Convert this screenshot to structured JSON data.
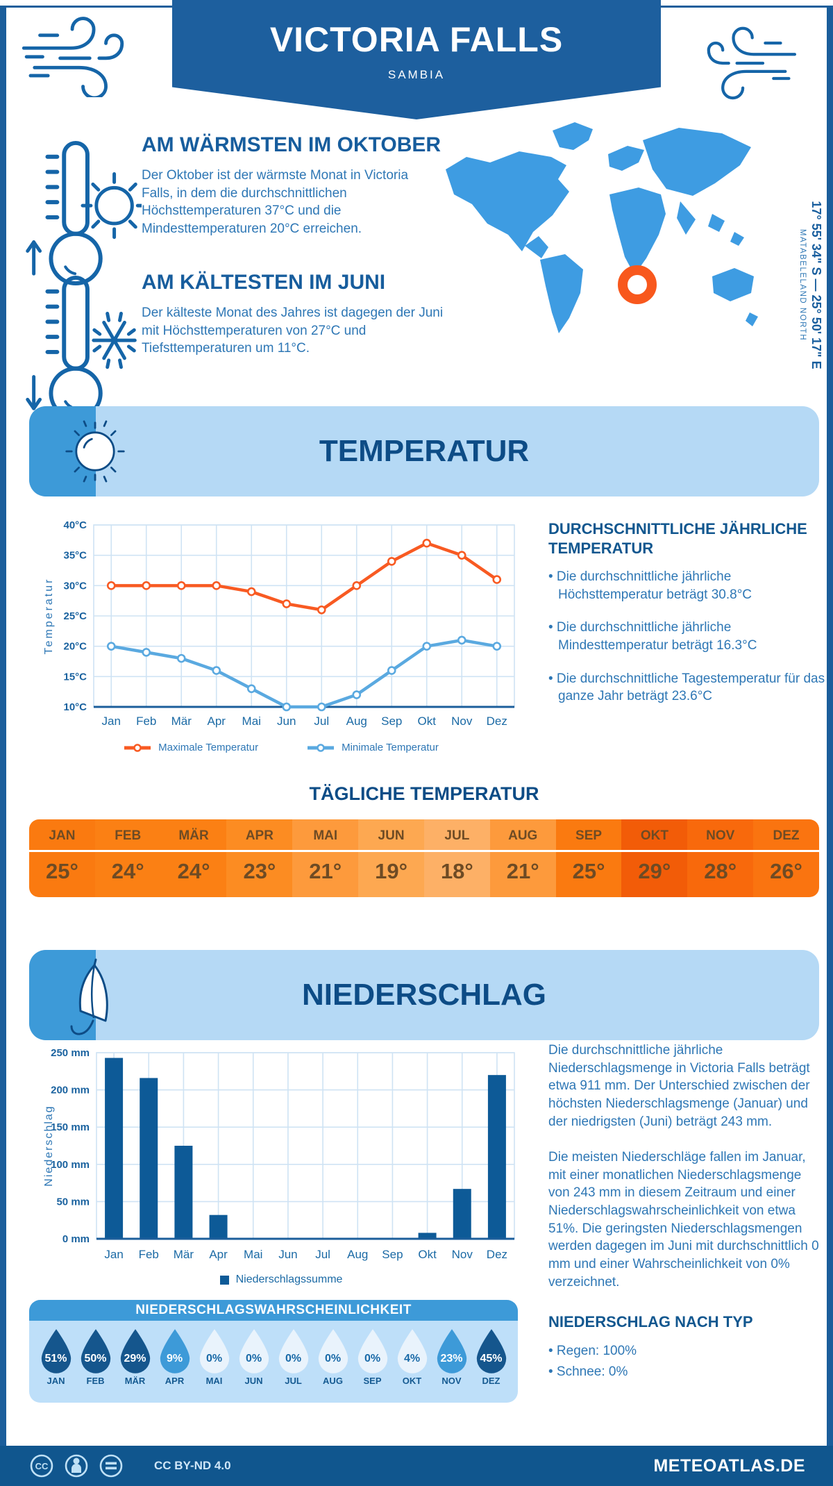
{
  "header": {
    "title": "VICTORIA FALLS",
    "subtitle": "SAMBIA"
  },
  "coords": {
    "line1": "17° 55' 34\" S — 25° 50' 17\" E",
    "line2": "MATABELELAND NORTH"
  },
  "warmest": {
    "heading": "AM WÄRMSTEN IM OKTOBER",
    "text": "Der Oktober ist der wärmste Monat in Victoria Falls, in dem die durchschnittlichen Höchsttemperaturen 37°C und die Mindesttemperaturen 20°C erreichen."
  },
  "coldest": {
    "heading": "AM KÄLTESTEN IM JUNI",
    "text": "Der kälteste Monat des Jahres ist dagegen der Juni mit Höchsttemperaturen von 27°C und Tiefsttemperaturen um 11°C."
  },
  "temperature_section": {
    "title": "TEMPERATUR",
    "annual_heading": "DURCHSCHNITTLICHE JÄHRLICHE TEMPERATUR",
    "bullets": [
      "• Die durchschnittliche jährliche Höchsttemperatur beträgt 30.8°C",
      "• Die durchschnittliche jährliche Mindesttemperatur beträgt 16.3°C",
      "• Die durchschnittliche Tagestemperatur für das ganze Jahr beträgt 23.6°C"
    ]
  },
  "chart_data": [
    {
      "type": "line",
      "x": [
        "Jan",
        "Feb",
        "Mär",
        "Apr",
        "Mai",
        "Jun",
        "Jul",
        "Aug",
        "Sep",
        "Okt",
        "Nov",
        "Dez"
      ],
      "series": [
        {
          "name": "Maximale Temperatur",
          "color": "#f85a22",
          "values": [
            30,
            30,
            30,
            30,
            29,
            27,
            26,
            30,
            34,
            37,
            35,
            31
          ]
        },
        {
          "name": "Minimale Temperatur",
          "color": "#5aa9e0",
          "values": [
            20,
            19,
            18,
            16,
            13,
            10,
            10,
            12,
            16,
            20,
            21,
            20
          ]
        }
      ],
      "ylabel": "Temperatur",
      "ylim": [
        10,
        40
      ],
      "ytick_step": 5,
      "ytick_suffix": "°C",
      "grid": true,
      "legend_position": "bottom"
    },
    {
      "type": "bar",
      "categories": [
        "Jan",
        "Feb",
        "Mär",
        "Apr",
        "Mai",
        "Jun",
        "Jul",
        "Aug",
        "Sep",
        "Okt",
        "Nov",
        "Dez"
      ],
      "values": [
        243,
        216,
        125,
        32,
        1,
        0,
        1,
        0,
        0,
        8,
        67,
        220
      ],
      "series_name": "Niederschlagssumme",
      "color": "#0d5a97",
      "ylabel": "Niederschlag",
      "ylim": [
        0,
        250
      ],
      "ytick_step": 50,
      "ytick_suffix": " mm",
      "grid": true,
      "legend_position": "bottom"
    }
  ],
  "daily_table": {
    "title": "TÄGLICHE TEMPERATUR",
    "months": [
      "JAN",
      "FEB",
      "MÄR",
      "APR",
      "MAI",
      "JUN",
      "JUL",
      "AUG",
      "SEP",
      "OKT",
      "NOV",
      "DEZ"
    ],
    "values": [
      "25°",
      "24°",
      "24°",
      "23°",
      "21°",
      "19°",
      "18°",
      "21°",
      "25°",
      "29°",
      "28°",
      "26°"
    ],
    "colors": [
      "#fa7a10",
      "#fb8014",
      "#fb8014",
      "#fc8c22",
      "#fd9a3c",
      "#fda851",
      "#fdb066",
      "#fd9a3c",
      "#fa7a10",
      "#f25c08",
      "#f8690c",
      "#fa7410"
    ],
    "text_color": "#6e4b24"
  },
  "precip_section": {
    "title": "NIEDERSCHLAG",
    "paragraph1": "Die durchschnittliche jährliche Niederschlagsmenge in Victoria Falls beträgt etwa 911 mm. Der Unterschied zwischen der höchsten Niederschlagsmenge (Januar) und der niedrigsten (Juni) beträgt 243 mm.",
    "paragraph2": "Die meisten Niederschläge fallen im Januar, mit einer monatlichen Niederschlagsmenge von 243 mm in diesem Zeitraum und einer Niederschlagswahrscheinlichkeit von etwa 51%. Die geringsten Niederschlagsmengen werden dagegen im Juni mit durchschnittlich 0 mm und einer Wahrscheinlichkeit von 0% verzeichnet.",
    "by_type_heading": "NIEDERSCHLAG NACH TYP",
    "by_type_bullets": [
      "• Regen: 100%",
      "• Schnee: 0%"
    ]
  },
  "precip_prob": {
    "title": "NIEDERSCHLAGSWAHRSCHEINLICHKEIT",
    "months": [
      "JAN",
      "FEB",
      "MÄR",
      "APR",
      "MAI",
      "JUN",
      "JUL",
      "AUG",
      "SEP",
      "OKT",
      "NOV",
      "DEZ"
    ],
    "values": [
      "51%",
      "50%",
      "29%",
      "9%",
      "0%",
      "0%",
      "0%",
      "0%",
      "0%",
      "4%",
      "23%",
      "45%"
    ],
    "levels": [
      "dark",
      "dark",
      "dark",
      "mid",
      "light",
      "light",
      "light",
      "light",
      "light",
      "light",
      "mid",
      "dark"
    ],
    "palette": {
      "dark": "#15568d",
      "mid": "#3d9ad8",
      "light": "#e9f3fc",
      "text_on_light": "#1a6aa8"
    }
  },
  "legend": {
    "max": "Maximale Temperatur",
    "min": "Minimale Temperatur",
    "precip": "Niederschlagssumme"
  },
  "footer": {
    "license": "CC BY-ND 4.0",
    "brand": "METEOATLAS.DE"
  },
  "palette": {
    "dark_blue": "#1b5e9b",
    "medium_blue": "#3d9ad8",
    "light_panel": "#b5d9f5",
    "body_text": "#2e77b5",
    "heading": "#0d4c86",
    "map_blue": "#3e9ce2",
    "marker_orange": "#f8581d"
  }
}
